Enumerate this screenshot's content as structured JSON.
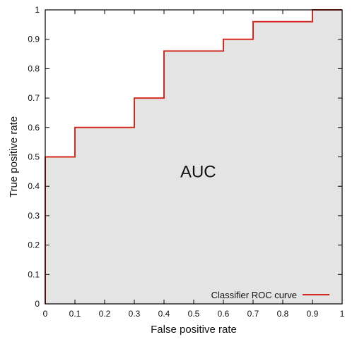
{
  "chart_data": {
    "type": "area",
    "xlabel": "False positive rate",
    "ylabel": "True positive rate",
    "xlim": [
      0,
      1
    ],
    "ylim": [
      0,
      1
    ],
    "x_ticks": [
      0,
      0.1,
      0.2,
      0.3,
      0.4,
      0.5,
      0.6,
      0.7,
      0.8,
      0.9,
      1
    ],
    "x_tick_labels": [
      "0",
      "0.1",
      "0.2",
      "0.3",
      "0.4",
      "0.5",
      "0.6",
      "0.7",
      "0.8",
      "0.9",
      "1"
    ],
    "y_ticks": [
      0,
      0.1,
      0.2,
      0.3,
      0.4,
      0.5,
      0.6,
      0.7,
      0.8,
      0.9,
      1
    ],
    "y_tick_labels": [
      "0",
      "0.1",
      "0.2",
      "0.3",
      "0.4",
      "0.5",
      "0.6",
      "0.7",
      "0.8",
      "0.9",
      "1"
    ],
    "grid": false,
    "legend_position": "bottom-right",
    "annotation": "AUC",
    "fill_color": "#e4e4e4",
    "series": [
      {
        "name": "Classifier ROC curve",
        "color": "#d42a20",
        "step": true,
        "x": [
          0,
          0,
          0.1,
          0.1,
          0.3,
          0.3,
          0.4,
          0.4,
          0.6,
          0.6,
          0.7,
          0.7,
          0.9,
          0.9,
          1
        ],
        "y": [
          0,
          0.5,
          0.5,
          0.6,
          0.6,
          0.7,
          0.7,
          0.86,
          0.86,
          0.9,
          0.9,
          0.96,
          0.96,
          1,
          1
        ]
      }
    ]
  }
}
